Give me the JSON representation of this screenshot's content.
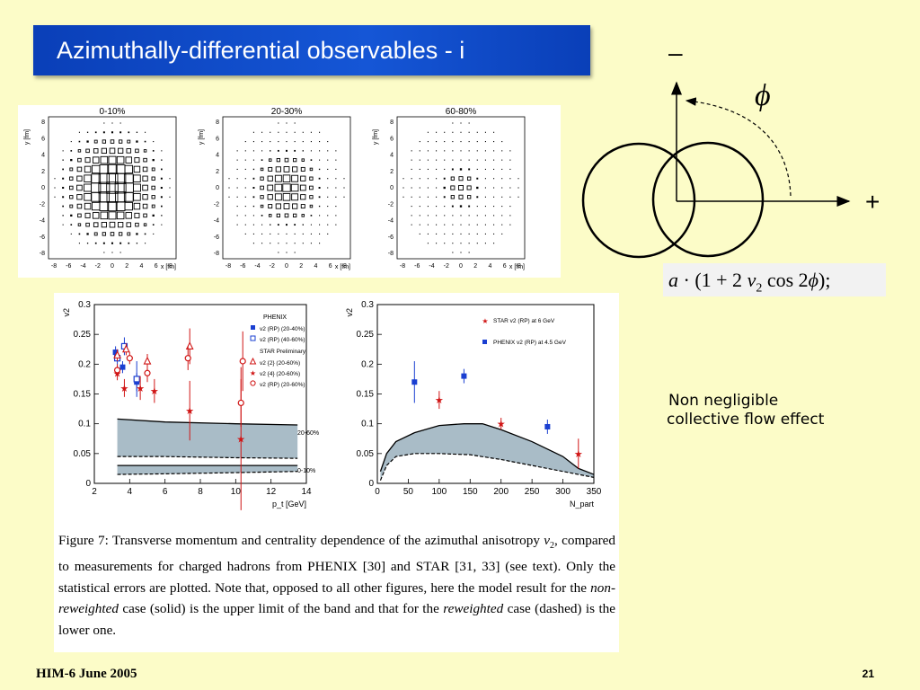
{
  "slide": {
    "title": "Azimuthally-differential observables - i",
    "footer_left": "HIM-6 June 2005",
    "page_number": "21"
  },
  "density_plots": {
    "panels": [
      {
        "title": "0-10%"
      },
      {
        "title": "20-30%"
      },
      {
        "title": "60-80%"
      }
    ],
    "ylabel": "y [fm]",
    "xlabel": "x [fm]",
    "ticks": [
      "-8",
      "-6",
      "-4",
      "-2",
      "0",
      "2",
      "4",
      "6",
      "8"
    ]
  },
  "diagram": {
    "minus_label": "–",
    "plus_label": "+",
    "phi_label": "ϕ",
    "formula_parts": [
      "a",
      " · (1 + 2 ",
      "v",
      "2",
      " cos 2",
      "ϕ",
      ");"
    ]
  },
  "note": {
    "line1": "Non negligible",
    "line2": "collective flow effect"
  },
  "chart_data": [
    {
      "type": "scatter",
      "xlabel": "p_t [GeV]",
      "ylabel": "v2",
      "xlim": [
        2,
        14
      ],
      "ylim": [
        0,
        0.3
      ],
      "x_ticks": [
        "2",
        "4",
        "6",
        "8",
        "10",
        "12",
        "14"
      ],
      "y_ticks": [
        "0",
        "0.05",
        "0.1",
        "0.15",
        "0.2",
        "0.25",
        "0.3"
      ],
      "legend": {
        "group1": "PHENIX",
        "group2": "STAR Preliminary",
        "entries": [
          "v2 (RP) (20-40%)",
          "v2 (RP) (40-60%)",
          "v2 {2}  (20-60%)",
          "v2 {4}  (20-60%)",
          "v2 (RP) (20-60%)"
        ]
      },
      "band_labels": [
        "20-60%",
        "0-10%"
      ],
      "series": [
        {
          "name": "v2 (RP) (20-40%)",
          "color": "#1a3fd1",
          "points": [
            [
              3.2,
              0.22,
              0.01
            ],
            [
              3.6,
              0.195,
              0.01
            ],
            [
              4.4,
              0.17,
              0.015
            ]
          ]
        },
        {
          "name": "v2 (RP) (40-60%)",
          "color": "#1a3fd1",
          "points": [
            [
              3.3,
              0.21,
              0.012
            ],
            [
              3.7,
              0.23,
              0.015
            ],
            [
              4.4,
              0.175,
              0.03
            ]
          ]
        },
        {
          "name": "v2 {2}  (20-60%)",
          "color": "#d01515",
          "points": [
            [
              3.3,
              0.215,
              0.01
            ],
            [
              3.8,
              0.225,
              0.01
            ],
            [
              5.0,
              0.205,
              0.012
            ],
            [
              7.4,
              0.23,
              0.03
            ]
          ]
        },
        {
          "name": "v2 {4}  (20-60%)",
          "color": "#d01515",
          "points": [
            [
              3.3,
              0.185,
              0.012
            ],
            [
              3.7,
              0.16,
              0.015
            ],
            [
              4.6,
              0.16,
              0.02
            ],
            [
              5.4,
              0.155,
              0.02
            ],
            [
              7.4,
              0.122,
              0.05
            ],
            [
              10.3,
              0.075,
              0.12
            ]
          ]
        },
        {
          "name": "v2 (RP) (20-60%)",
          "color": "#d01515",
          "points": [
            [
              3.3,
              0.19,
              0.01
            ],
            [
              4.0,
              0.21,
              0.01
            ],
            [
              5.0,
              0.185,
              0.015
            ],
            [
              7.3,
              0.21,
              0.02
            ],
            [
              10.3,
              0.135,
              0.04
            ],
            [
              10.4,
              0.205,
              0.05
            ]
          ]
        }
      ],
      "bands": [
        {
          "upper": [
            [
              3.3,
              0.108
            ],
            [
              6,
              0.103
            ],
            [
              10,
              0.1
            ],
            [
              13.5,
              0.098
            ]
          ],
          "lower": [
            [
              3.3,
              0.045
            ],
            [
              6,
              0.045
            ],
            [
              10,
              0.043
            ],
            [
              13.5,
              0.042
            ]
          ]
        },
        {
          "upper": [
            [
              3.3,
              0.03
            ],
            [
              6,
              0.03
            ],
            [
              10,
              0.03
            ],
            [
              13.5,
              0.03
            ]
          ],
          "lower": [
            [
              3.3,
              0.015
            ],
            [
              6,
              0.016
            ],
            [
              10,
              0.018
            ],
            [
              13.5,
              0.02
            ]
          ]
        }
      ]
    },
    {
      "type": "scatter",
      "xlabel": "N_part",
      "ylabel": "v2",
      "xlim": [
        0,
        350
      ],
      "ylim": [
        0,
        0.3
      ],
      "x_ticks": [
        "0",
        "50",
        "100",
        "150",
        "200",
        "250",
        "300",
        "350"
      ],
      "y_ticks": [
        "0",
        "0.05",
        "0.1",
        "0.15",
        "0.2",
        "0.25",
        "0.3"
      ],
      "legend": {
        "entries": [
          "STAR v2 (RP) at 6 GeV",
          "PHENIX v2 (RP) at 4.5 GeV"
        ]
      },
      "series": [
        {
          "name": "STAR v2 (RP) at 6 GeV",
          "color": "#d01515",
          "points": [
            [
              100,
              0.14,
              0.015
            ],
            [
              200,
              0.1,
              0.01
            ],
            [
              325,
              0.05,
              0.025
            ]
          ]
        },
        {
          "name": "PHENIX v2 (RP) at 4.5 GeV",
          "color": "#1a3fd1",
          "points": [
            [
              60,
              0.17,
              0.035
            ],
            [
              140,
              0.18,
              0.012
            ],
            [
              275,
              0.095,
              0.012
            ]
          ]
        }
      ],
      "bands": [
        {
          "upper": [
            [
              5,
              0.02
            ],
            [
              15,
              0.05
            ],
            [
              30,
              0.07
            ],
            [
              60,
              0.085
            ],
            [
              100,
              0.097
            ],
            [
              140,
              0.1
            ],
            [
              170,
              0.1
            ],
            [
              200,
              0.09
            ],
            [
              250,
              0.07
            ],
            [
              300,
              0.045
            ],
            [
              325,
              0.025
            ],
            [
              350,
              0.015
            ]
          ],
          "lower": [
            [
              5,
              0.005
            ],
            [
              15,
              0.03
            ],
            [
              30,
              0.045
            ],
            [
              60,
              0.05
            ],
            [
              100,
              0.05
            ],
            [
              150,
              0.048
            ],
            [
              200,
              0.04
            ],
            [
              250,
              0.03
            ],
            [
              300,
              0.02
            ],
            [
              325,
              0.015
            ],
            [
              350,
              0.01
            ]
          ]
        }
      ]
    }
  ],
  "caption": {
    "fig_label": "Figure 7:",
    "part1": " Transverse momentum and centrality dependence of the azimuthal anisotropy ",
    "v2_v": "v",
    "v2_sub": "2",
    "part2": ", compared to measurements for charged hadrons from PHENIX [30] and STAR [31, 33] (see text). Only the statistical errors are plotted. Note that, opposed to all other figures, here the model result for the ",
    "italic1": "non-reweighted",
    "part3": " case (solid) is the upper limit of the band and that for the ",
    "italic2": "reweighted",
    "part4": " case (dashed) is the lower one."
  }
}
